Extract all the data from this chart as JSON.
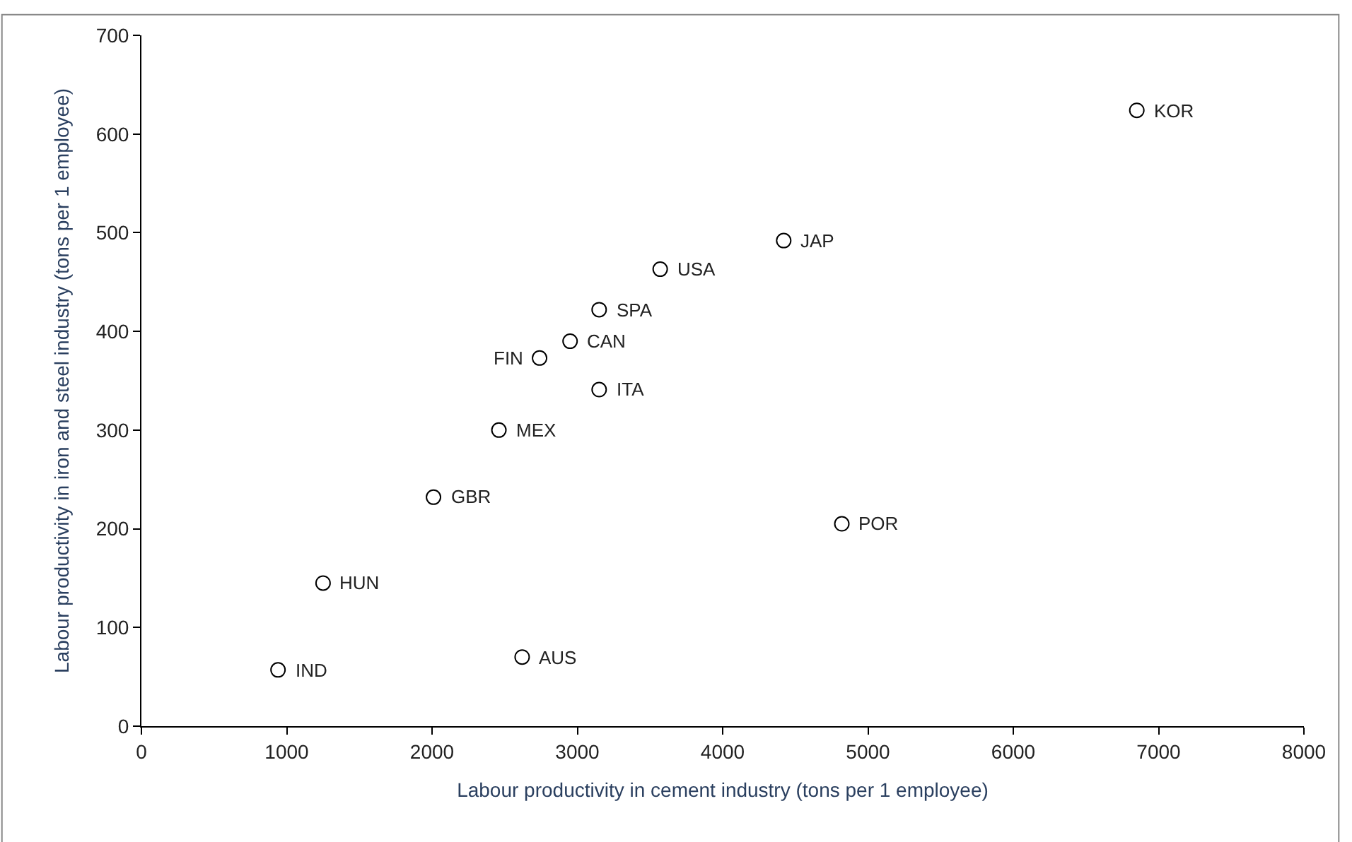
{
  "chart_data": {
    "type": "scatter",
    "xlabel": "Labour productivity in cement industry (tons per 1 employee)",
    "ylabel": "Labour productivity in iron and steel industry (tons per 1 employee)",
    "x": [
      6850,
      4420,
      3570,
      3150,
      2950,
      2740,
      3150,
      2460,
      2010,
      4820,
      1250,
      940,
      2620
    ],
    "values": [
      624,
      492,
      463,
      422,
      390,
      373,
      341,
      300,
      232,
      205,
      145,
      57,
      70
    ],
    "color": "#000000",
    "marker": "circle",
    "xlim": [
      0,
      8000
    ],
    "xticks": [
      0,
      1000,
      2000,
      3000,
      4000,
      5000,
      6000,
      7000,
      8000
    ],
    "ylim": [
      0,
      700
    ],
    "yticks": [
      0,
      100,
      200,
      300,
      400,
      500,
      600,
      700
    ],
    "annotations": [
      {
        "text": "KOR",
        "x": 6850,
        "y": 624
      },
      {
        "text": "JAP",
        "x": 4420,
        "y": 492
      },
      {
        "text": "USA",
        "x": 3570,
        "y": 463
      },
      {
        "text": "SPA",
        "x": 3150,
        "y": 422
      },
      {
        "text": "CAN",
        "x": 2950,
        "y": 390
      },
      {
        "text": "FIN",
        "x": 2740,
        "y": 373
      },
      {
        "text": "ITA",
        "x": 3150,
        "y": 341
      },
      {
        "text": "MEX",
        "x": 2460,
        "y": 300
      },
      {
        "text": "GBR",
        "x": 2010,
        "y": 232
      },
      {
        "text": "POR",
        "x": 4820,
        "y": 205
      },
      {
        "text": "HUN",
        "x": 1250,
        "y": 145
      },
      {
        "text": "IND",
        "x": 940,
        "y": 57
      },
      {
        "text": "AUS",
        "x": 2620,
        "y": 70
      }
    ]
  }
}
